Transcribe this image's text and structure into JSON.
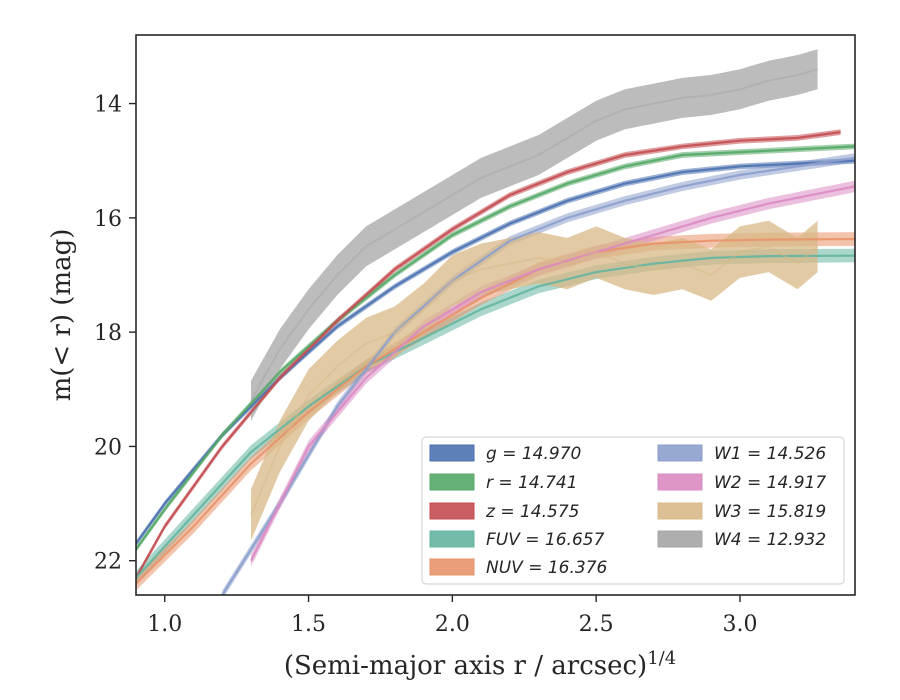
{
  "chart_data": {
    "type": "line",
    "title": "",
    "xlabel": "(Semi-major axis r / arcsec)",
    "xlabel_exponent": "1/4",
    "ylabel": "m(< r) (mag)",
    "xlim": [
      0.9,
      3.4
    ],
    "ylim": [
      22.6,
      12.8
    ],
    "y_inverted": true,
    "x_ticks": [
      1.0,
      1.5,
      2.0,
      2.5,
      3.0
    ],
    "x_tick_labels": [
      "1.0",
      "1.5",
      "2.0",
      "2.5",
      "3.0"
    ],
    "y_ticks": [
      14,
      16,
      18,
      20,
      22
    ],
    "y_tick_labels": [
      "14",
      "16",
      "18",
      "20",
      "22"
    ],
    "grid": false,
    "legend_position": "lower-right",
    "series": [
      {
        "name": "g",
        "label": "g = 14.970",
        "total": 14.97,
        "color": "#4c72b0",
        "x": [
          0.9,
          1.0,
          1.2,
          1.4,
          1.6,
          1.8,
          2.0,
          2.2,
          2.4,
          2.6,
          2.8,
          3.0,
          3.2,
          3.4
        ],
        "y": [
          21.7,
          21.0,
          19.8,
          18.8,
          17.9,
          17.2,
          16.6,
          16.1,
          15.7,
          15.4,
          15.2,
          15.1,
          15.05,
          15.0
        ]
      },
      {
        "name": "r",
        "label": "r = 14.741",
        "total": 14.741,
        "color": "#55a868",
        "x": [
          0.9,
          1.0,
          1.2,
          1.4,
          1.6,
          1.8,
          2.0,
          2.2,
          2.4,
          2.6,
          2.8,
          3.0,
          3.2,
          3.4
        ],
        "y": [
          21.8,
          21.1,
          19.8,
          18.7,
          17.8,
          17.0,
          16.3,
          15.8,
          15.4,
          15.1,
          14.9,
          14.85,
          14.8,
          14.75
        ]
      },
      {
        "name": "z",
        "label": "z = 14.575",
        "total": 14.575,
        "color": "#c44e52",
        "x": [
          0.9,
          1.0,
          1.2,
          1.4,
          1.6,
          1.8,
          2.0,
          2.2,
          2.4,
          2.6,
          2.8,
          3.0,
          3.2,
          3.35
        ],
        "y": [
          22.3,
          21.4,
          20.0,
          18.8,
          17.8,
          16.9,
          16.2,
          15.6,
          15.2,
          14.9,
          14.75,
          14.65,
          14.6,
          14.5
        ]
      },
      {
        "name": "FUV",
        "label": "FUV = 16.657",
        "total": 16.657,
        "color": "#64b5a0",
        "x": [
          0.9,
          1.1,
          1.3,
          1.5,
          1.7,
          1.9,
          2.1,
          2.3,
          2.5,
          2.7,
          2.9,
          3.1,
          3.4
        ],
        "y": [
          22.3,
          21.2,
          20.1,
          19.3,
          18.6,
          18.1,
          17.6,
          17.2,
          16.95,
          16.8,
          16.7,
          16.67,
          16.66
        ]
      },
      {
        "name": "NUV",
        "label": "NUV = 16.376",
        "total": 16.376,
        "color": "#e8946a",
        "x": [
          0.9,
          1.1,
          1.3,
          1.5,
          1.7,
          1.9,
          2.1,
          2.3,
          2.5,
          2.7,
          2.9,
          3.1,
          3.4
        ],
        "y": [
          22.4,
          21.4,
          20.3,
          19.4,
          18.6,
          18.0,
          17.4,
          16.9,
          16.6,
          16.45,
          16.4,
          16.38,
          16.37
        ]
      },
      {
        "name": "W1",
        "label": "W1 = 14.526",
        "total": 14.526,
        "color": "#8c9fcc",
        "x": [
          1.2,
          1.4,
          1.6,
          1.8,
          2.0,
          2.2,
          2.4,
          2.6,
          2.8,
          3.0,
          3.2,
          3.4
        ],
        "y": [
          22.6,
          21.0,
          19.3,
          18.0,
          17.1,
          16.4,
          16.0,
          15.7,
          15.45,
          15.25,
          15.1,
          14.95
        ]
      },
      {
        "name": "W2",
        "label": "W2 = 14.917",
        "total": 14.917,
        "color": "#da8bc3",
        "x": [
          1.3,
          1.5,
          1.7,
          1.9,
          2.1,
          2.3,
          2.5,
          2.7,
          2.9,
          3.1,
          3.3,
          3.4
        ],
        "y": [
          22.0,
          20.0,
          18.8,
          17.9,
          17.3,
          16.9,
          16.6,
          16.3,
          16.0,
          15.75,
          15.55,
          15.45
        ]
      },
      {
        "name": "W3",
        "label": "W3 = 15.819",
        "total": 15.819,
        "color": "#d8b887",
        "x": [
          1.3,
          1.4,
          1.5,
          1.6,
          1.7,
          1.8,
          1.9,
          2.0,
          2.1,
          2.2,
          2.3,
          2.4,
          2.5,
          2.6,
          2.7,
          2.8,
          2.9,
          3.0,
          3.1,
          3.2,
          3.27
        ],
        "y": [
          21.2,
          20.0,
          19.1,
          18.6,
          18.2,
          18.0,
          17.6,
          17.1,
          16.9,
          16.8,
          16.7,
          16.8,
          16.6,
          16.8,
          16.9,
          16.8,
          17.0,
          16.6,
          16.5,
          16.8,
          16.5
        ]
      },
      {
        "name": "W4",
        "label": "W4 = 12.932",
        "total": 12.932,
        "color": "#a5a5a5",
        "x": [
          1.3,
          1.4,
          1.5,
          1.6,
          1.7,
          1.8,
          1.9,
          2.0,
          2.1,
          2.2,
          2.3,
          2.4,
          2.5,
          2.6,
          2.7,
          2.8,
          2.9,
          3.0,
          3.1,
          3.2,
          3.27
        ],
        "y": [
          19.2,
          18.3,
          17.6,
          17.0,
          16.5,
          16.2,
          15.9,
          15.6,
          15.3,
          15.1,
          14.9,
          14.6,
          14.3,
          14.1,
          14.0,
          13.9,
          13.85,
          13.75,
          13.6,
          13.5,
          13.4
        ]
      }
    ]
  }
}
